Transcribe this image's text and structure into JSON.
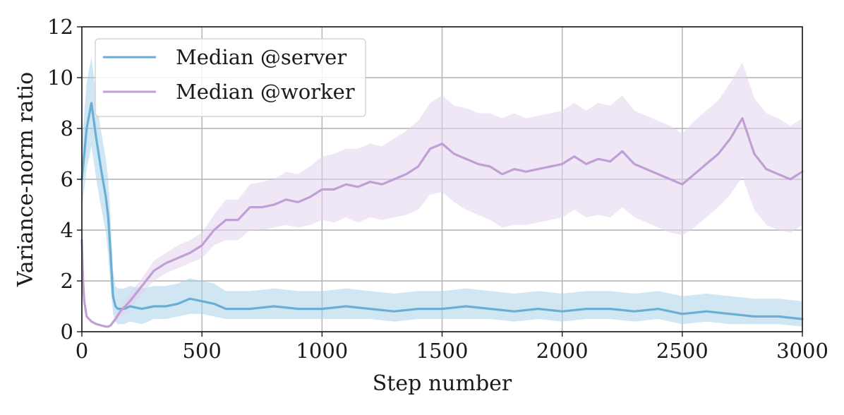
{
  "chart_data": {
    "type": "line",
    "title": "",
    "xlabel": "Step number",
    "ylabel": "Variance-norm ratio",
    "xlim": [
      0,
      3000
    ],
    "ylim": [
      0,
      12
    ],
    "xticks": [
      "0",
      "500",
      "1000",
      "1500",
      "2000",
      "2500",
      "3000"
    ],
    "yticks": [
      "0",
      "2",
      "4",
      "6",
      "8",
      "10",
      "12"
    ],
    "grid": true,
    "legend_position": "upper-left",
    "series": [
      {
        "name": "Median @server",
        "color": "#6aaed6",
        "band_color": "#a9d1ea",
        "x": [
          0,
          20,
          40,
          60,
          80,
          100,
          110,
          120,
          130,
          140,
          150,
          175,
          200,
          250,
          300,
          350,
          400,
          450,
          500,
          550,
          600,
          700,
          800,
          900,
          1000,
          1100,
          1200,
          1300,
          1400,
          1500,
          1600,
          1700,
          1800,
          1900,
          2000,
          2100,
          2200,
          2300,
          2400,
          2500,
          2600,
          2700,
          2800,
          2900,
          3000
        ],
        "values": [
          6.0,
          8.0,
          9.0,
          7.6,
          6.4,
          5.3,
          4.5,
          3.0,
          1.4,
          1.0,
          0.9,
          0.9,
          1.0,
          0.9,
          1.0,
          1.0,
          1.1,
          1.3,
          1.2,
          1.1,
          0.9,
          0.9,
          1.0,
          0.9,
          0.9,
          1.0,
          0.9,
          0.8,
          0.9,
          0.9,
          1.0,
          0.9,
          0.8,
          0.9,
          0.8,
          0.9,
          0.9,
          0.8,
          0.9,
          0.7,
          0.8,
          0.7,
          0.6,
          0.6,
          0.5
        ],
        "band_lower": [
          4.8,
          6.4,
          7.3,
          6.0,
          4.9,
          3.9,
          3.0,
          1.7,
          0.7,
          0.4,
          0.3,
          0.3,
          0.4,
          0.3,
          0.5,
          0.5,
          0.6,
          0.7,
          0.7,
          0.6,
          0.5,
          0.5,
          0.5,
          0.5,
          0.5,
          0.5,
          0.5,
          0.4,
          0.5,
          0.5,
          0.5,
          0.5,
          0.4,
          0.5,
          0.4,
          0.5,
          0.5,
          0.4,
          0.5,
          0.3,
          0.4,
          0.3,
          0.3,
          0.3,
          0.2
        ],
        "band_upper": [
          7.5,
          9.8,
          10.8,
          9.2,
          7.9,
          6.8,
          6.0,
          4.4,
          2.4,
          1.8,
          1.7,
          1.7,
          1.8,
          1.7,
          1.8,
          1.8,
          1.9,
          2.1,
          2.0,
          1.9,
          1.6,
          1.6,
          1.7,
          1.6,
          1.6,
          1.7,
          1.6,
          1.5,
          1.6,
          1.6,
          1.7,
          1.6,
          1.5,
          1.6,
          1.5,
          1.6,
          1.6,
          1.5,
          1.6,
          1.4,
          1.5,
          1.4,
          1.3,
          1.3,
          1.2
        ]
      },
      {
        "name": "Median @worker",
        "color": "#c19fd6",
        "band_color": "#e2d2ee",
        "x": [
          0,
          5,
          10,
          20,
          40,
          60,
          80,
          100,
          110,
          120,
          140,
          160,
          200,
          250,
          300,
          350,
          400,
          450,
          500,
          550,
          600,
          650,
          700,
          750,
          800,
          850,
          900,
          950,
          1000,
          1050,
          1100,
          1150,
          1200,
          1250,
          1300,
          1350,
          1400,
          1450,
          1500,
          1550,
          1600,
          1650,
          1700,
          1750,
          1800,
          1850,
          1900,
          1950,
          2000,
          2050,
          2100,
          2150,
          2200,
          2250,
          2300,
          2350,
          2400,
          2450,
          2500,
          2550,
          2600,
          2650,
          2700,
          2750,
          2800,
          2850,
          2900,
          2950,
          3000
        ],
        "values": [
          3.6,
          2.0,
          1.2,
          0.6,
          0.4,
          0.3,
          0.25,
          0.2,
          0.2,
          0.25,
          0.5,
          0.8,
          1.2,
          1.8,
          2.4,
          2.7,
          2.9,
          3.1,
          3.4,
          4.0,
          4.4,
          4.4,
          4.9,
          4.9,
          5.0,
          5.2,
          5.1,
          5.3,
          5.6,
          5.6,
          5.8,
          5.7,
          5.9,
          5.8,
          6.0,
          6.2,
          6.5,
          7.2,
          7.4,
          7.0,
          6.8,
          6.6,
          6.5,
          6.2,
          6.4,
          6.3,
          6.4,
          6.5,
          6.6,
          6.9,
          6.6,
          6.8,
          6.7,
          7.1,
          6.6,
          6.4,
          6.2,
          6.0,
          5.8,
          6.2,
          6.6,
          7.0,
          7.6,
          8.4,
          7.0,
          6.4,
          6.2,
          6.0,
          6.3
        ],
        "band_lower": [
          3.6,
          2.0,
          1.2,
          0.6,
          0.4,
          0.3,
          0.25,
          0.2,
          0.2,
          0.25,
          0.4,
          0.6,
          0.9,
          1.5,
          2.0,
          2.3,
          2.5,
          2.7,
          2.9,
          3.4,
          3.6,
          3.6,
          4.0,
          4.0,
          4.1,
          4.2,
          4.1,
          4.2,
          4.4,
          4.3,
          4.5,
          4.3,
          4.5,
          4.4,
          4.5,
          4.6,
          4.8,
          5.4,
          5.5,
          5.1,
          4.8,
          4.6,
          4.4,
          4.1,
          4.2,
          4.2,
          4.3,
          4.4,
          4.5,
          4.8,
          4.5,
          4.6,
          4.5,
          4.9,
          4.5,
          4.3,
          4.1,
          3.9,
          3.8,
          4.1,
          4.5,
          4.9,
          5.4,
          6.1,
          4.8,
          4.2,
          4.0,
          3.9,
          4.2
        ],
        "band_upper": [
          3.6,
          2.0,
          1.2,
          0.6,
          0.4,
          0.3,
          0.25,
          0.2,
          0.2,
          0.25,
          0.6,
          1.0,
          1.5,
          2.1,
          2.8,
          3.1,
          3.4,
          3.6,
          3.9,
          4.6,
          5.2,
          5.2,
          5.8,
          5.9,
          6.0,
          6.3,
          6.2,
          6.5,
          6.9,
          7.0,
          7.2,
          7.2,
          7.4,
          7.3,
          7.6,
          7.9,
          8.3,
          9.0,
          9.3,
          8.9,
          8.8,
          8.6,
          8.6,
          8.4,
          8.6,
          8.4,
          8.5,
          8.6,
          8.7,
          9.0,
          8.7,
          9.0,
          8.9,
          9.3,
          8.7,
          8.5,
          8.3,
          8.1,
          7.8,
          8.3,
          8.7,
          9.1,
          9.8,
          10.6,
          9.2,
          8.6,
          8.4,
          8.1,
          8.4
        ]
      }
    ]
  }
}
